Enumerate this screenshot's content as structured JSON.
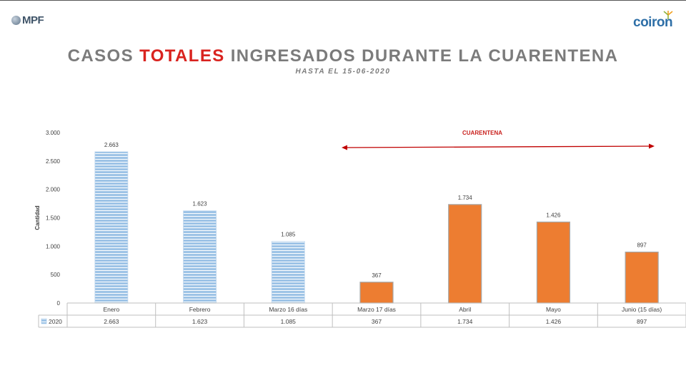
{
  "header": {
    "left_logo_text": "MPF",
    "right_logo_text": "coiron"
  },
  "title": {
    "part1": "CASOS ",
    "highlight": "TOTALES",
    "part2": " INGRESADOS DURANTE LA CUARENTENA",
    "subtitle": "HASTA EL 15-06-2020"
  },
  "annotation": {
    "label": "CUARENTENA"
  },
  "colors": {
    "title_gray": "#7b7b7b",
    "highlight_red": "#d9231f",
    "pre_quarantine_blue": "#9dc3e6",
    "quarantine_orange": "#ed7d31"
  },
  "chart_data": {
    "type": "bar",
    "categories": [
      "Enero",
      "Febrero",
      "Marzo 16 días",
      "Marzo 17 días",
      "Abril",
      "Mayo",
      "Junio (15 días)"
    ],
    "series": [
      {
        "name": "2020",
        "values": [
          2663,
          1623,
          1085,
          367,
          1734,
          1426,
          897
        ]
      }
    ],
    "data_labels": [
      "2.663",
      "1.623",
      "1.085",
      "367",
      "1.734",
      "1.426",
      "897"
    ],
    "ylabel": "Cantidad",
    "ylim": [
      0,
      3000
    ],
    "yticks": [
      0,
      500,
      1000,
      1500,
      2000,
      2500,
      3000
    ],
    "ytick_labels": [
      "0",
      "500",
      "1.000",
      "1.500",
      "2.000",
      "2.500",
      "3.000"
    ],
    "quarantine_start_index": 3,
    "grid": false,
    "data_table": true
  }
}
